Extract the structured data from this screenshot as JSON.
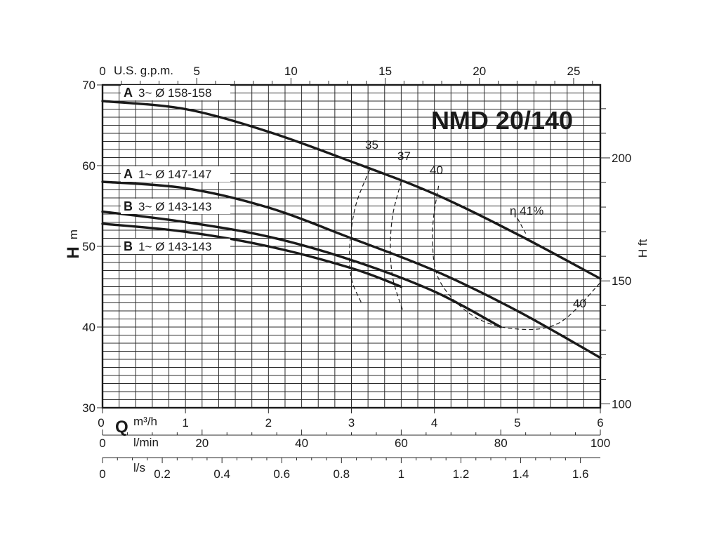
{
  "chart_data": {
    "type": "line",
    "title": "NMD 20/140",
    "xlabel": "Q",
    "ylabel": "H",
    "xlim": [
      0,
      6
    ],
    "ylim": [
      30,
      70
    ],
    "grid": true,
    "axes": {
      "left": {
        "name": "H",
        "unit": "m",
        "ticks": [
          "30",
          "40",
          "50",
          "60",
          "70"
        ]
      },
      "right": {
        "name": "H ft",
        "ticks": [
          "100",
          "150",
          "200"
        ]
      },
      "top": {
        "name": "U.S. g.p.m.",
        "ticks": [
          "0",
          "5",
          "10",
          "15",
          "20",
          "25"
        ]
      },
      "bottom_m3h": {
        "name": "Q",
        "unit": "m³/h",
        "ticks": [
          "0",
          "1",
          "2",
          "3",
          "4",
          "5",
          "6"
        ]
      },
      "bottom_lmin": {
        "unit": "l/min",
        "ticks": [
          "0",
          "20",
          "40",
          "60",
          "80",
          "100"
        ]
      },
      "bottom_ls": {
        "unit": "l/s",
        "ticks": [
          "0",
          "0.2",
          "0.4",
          "0.6",
          "0.8",
          "1",
          "1.2",
          "1.4",
          "1.6"
        ]
      }
    },
    "series": [
      {
        "name": "A 3~ Ø 158-158",
        "label_parts": [
          "A",
          "3~",
          "Ø 158-158"
        ],
        "x": [
          0,
          1,
          2,
          3,
          4,
          5,
          6
        ],
        "y": [
          68.0,
          67.0,
          64.2,
          60.5,
          56.5,
          51.5,
          46.0
        ]
      },
      {
        "name": "A 1~ Ø 147-147",
        "label_parts": [
          "A",
          "1~",
          "Ø 147-147"
        ],
        "x": [
          0,
          1,
          2,
          3,
          4,
          5,
          6
        ],
        "y": [
          58.0,
          57.2,
          54.8,
          51.0,
          47.0,
          42.0,
          36.2
        ]
      },
      {
        "name": "B 3~ Ø 143-143",
        "label_parts": [
          "B",
          "3~",
          "Ø 143-143"
        ],
        "x": [
          0,
          1,
          2,
          3,
          4,
          4.8
        ],
        "y": [
          54.3,
          53.0,
          51.2,
          48.3,
          44.4,
          40.0
        ]
      },
      {
        "name": "B 1~ Ø 143-143",
        "label_parts": [
          "B",
          "1~",
          "Ø 143-143"
        ],
        "x": [
          0,
          1,
          2,
          3,
          3.6
        ],
        "y": [
          52.8,
          51.8,
          50.0,
          47.3,
          45.0
        ]
      }
    ],
    "efficiency": {
      "symbol": "η",
      "labels": [
        "35",
        "37",
        "40",
        "41%",
        "40"
      ],
      "contours": [
        {
          "label": "35",
          "x": [
            3.22,
            3.05,
            2.98,
            3.0,
            3.12
          ],
          "y": [
            59.5,
            55.0,
            50.0,
            46.0,
            43.0
          ]
        },
        {
          "label": "37",
          "x": [
            3.6,
            3.5,
            3.47,
            3.5,
            3.62
          ],
          "y": [
            58.0,
            54.0,
            50.0,
            46.0,
            42.0
          ]
        },
        {
          "label": "40 / 41%",
          "x": [
            4.05,
            3.98,
            4.05,
            4.45,
            4.95,
            5.5,
            6.0
          ],
          "y": [
            57.5,
            52.0,
            46.0,
            41.5,
            39.8,
            40.5,
            45.5
          ]
        }
      ]
    }
  },
  "labels": {
    "title": "NMD 20/140",
    "top_unit": "U.S. g.p.m.",
    "left_name": "H",
    "left_unit": "m",
    "right_name": "H ft",
    "q_symbol": "Q",
    "q_unit_m3h": "m³/h",
    "q_unit_lmin": "l/min",
    "q_unit_ls": "l/s",
    "eta_label": "η 41%",
    "eff_35": "35",
    "eff_37": "37",
    "eff_40_top": "40",
    "eff_40_right": "40"
  }
}
